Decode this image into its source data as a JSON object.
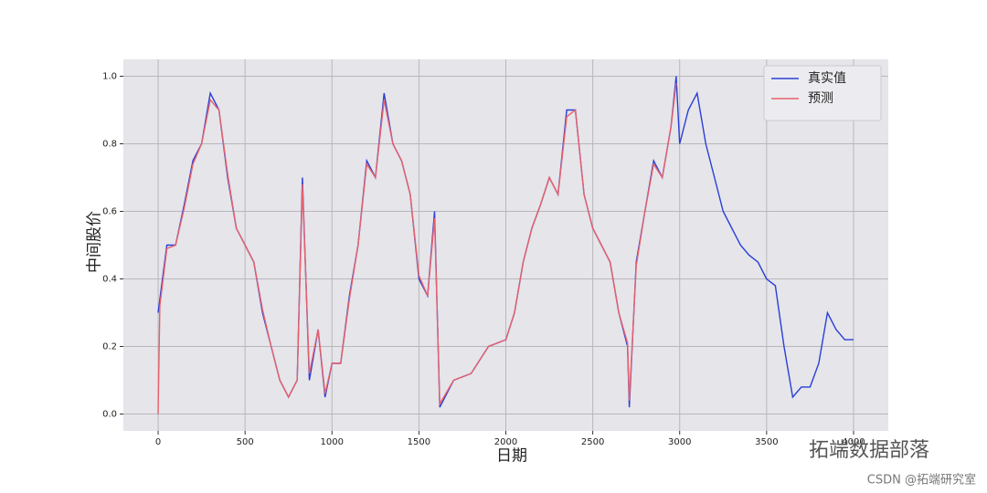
{
  "chart_data": {
    "type": "line",
    "x_label": "日期",
    "y_label": "中间股价",
    "xlim": [
      -200,
      4200
    ],
    "ylim": [
      -0.05,
      1.05
    ],
    "xticks": [
      0,
      500,
      1000,
      1500,
      2000,
      2500,
      3000,
      3500,
      4000
    ],
    "yticks": [
      {
        "value": 0,
        "label": "0.0"
      },
      {
        "value": 0.2,
        "label": "0.2"
      },
      {
        "value": 0.4,
        "label": "0.4"
      },
      {
        "value": 0.6,
        "label": "0.6"
      },
      {
        "value": 0.8,
        "label": "0.8"
      },
      {
        "value": 1,
        "label": "1.0"
      }
    ],
    "grid": true,
    "legend": "upper right",
    "series": [
      {
        "name": "真实值",
        "color": "#2a3fd6",
        "x": [
          0,
          50,
          100,
          150,
          200,
          250,
          300,
          350,
          400,
          450,
          500,
          550,
          600,
          650,
          700,
          750,
          800,
          830,
          870,
          920,
          960,
          1000,
          1050,
          1100,
          1150,
          1200,
          1250,
          1300,
          1350,
          1400,
          1450,
          1500,
          1550,
          1590,
          1620,
          1700,
          1800,
          1900,
          2000,
          2050,
          2100,
          2150,
          2200,
          2250,
          2300,
          2350,
          2400,
          2450,
          2500,
          2550,
          2600,
          2650,
          2700,
          2710,
          2750,
          2800,
          2850,
          2900,
          2950,
          2980,
          3000,
          3050,
          3100,
          3150,
          3200,
          3250,
          3300,
          3350,
          3400,
          3450,
          3500,
          3550,
          3600,
          3650,
          3700,
          3750,
          3800,
          3850,
          3900,
          3950,
          4000
        ],
        "values": [
          0.3,
          0.5,
          0.5,
          0.62,
          0.75,
          0.8,
          0.95,
          0.9,
          0.7,
          0.55,
          0.5,
          0.45,
          0.3,
          0.2,
          0.1,
          0.05,
          0.1,
          0.7,
          0.1,
          0.25,
          0.05,
          0.15,
          0.15,
          0.35,
          0.5,
          0.75,
          0.7,
          0.95,
          0.8,
          0.75,
          0.65,
          0.4,
          0.35,
          0.6,
          0.02,
          0.1,
          0.12,
          0.2,
          0.22,
          0.3,
          0.45,
          0.55,
          0.62,
          0.7,
          0.65,
          0.9,
          0.9,
          0.65,
          0.55,
          0.5,
          0.45,
          0.3,
          0.2,
          0.02,
          0.45,
          0.6,
          0.75,
          0.7,
          0.85,
          1.0,
          0.8,
          0.9,
          0.95,
          0.8,
          0.7,
          0.6,
          0.55,
          0.5,
          0.47,
          0.45,
          0.4,
          0.38,
          0.2,
          0.05,
          0.08,
          0.08,
          0.15,
          0.3,
          0.25,
          0.22,
          0.22
        ]
      },
      {
        "name": "预测",
        "color": "#e8606a",
        "x": [
          0,
          10,
          50,
          100,
          150,
          200,
          250,
          300,
          350,
          400,
          450,
          500,
          550,
          600,
          650,
          700,
          750,
          800,
          830,
          870,
          920,
          960,
          1000,
          1050,
          1100,
          1150,
          1200,
          1250,
          1300,
          1350,
          1400,
          1450,
          1500,
          1550,
          1590,
          1620,
          1700,
          1800,
          1900,
          2000,
          2050,
          2100,
          2150,
          2200,
          2250,
          2300,
          2350,
          2400,
          2450,
          2500,
          2550,
          2600,
          2650,
          2700,
          2710,
          2750,
          2800,
          2850,
          2900,
          2950,
          2980
        ],
        "values": [
          0,
          0.32,
          0.49,
          0.5,
          0.61,
          0.74,
          0.8,
          0.93,
          0.9,
          0.71,
          0.55,
          0.5,
          0.45,
          0.31,
          0.2,
          0.1,
          0.05,
          0.1,
          0.68,
          0.12,
          0.25,
          0.06,
          0.15,
          0.15,
          0.34,
          0.5,
          0.74,
          0.7,
          0.93,
          0.8,
          0.75,
          0.65,
          0.41,
          0.35,
          0.58,
          0.03,
          0.1,
          0.12,
          0.2,
          0.22,
          0.3,
          0.45,
          0.55,
          0.62,
          0.7,
          0.65,
          0.88,
          0.9,
          0.65,
          0.55,
          0.5,
          0.45,
          0.3,
          0.21,
          0.04,
          0.44,
          0.6,
          0.74,
          0.7,
          0.85,
          0.98
        ]
      }
    ]
  },
  "watermark": {
    "brand": "拓端数据部落",
    "credit": "CSDN @拓端研究室"
  }
}
